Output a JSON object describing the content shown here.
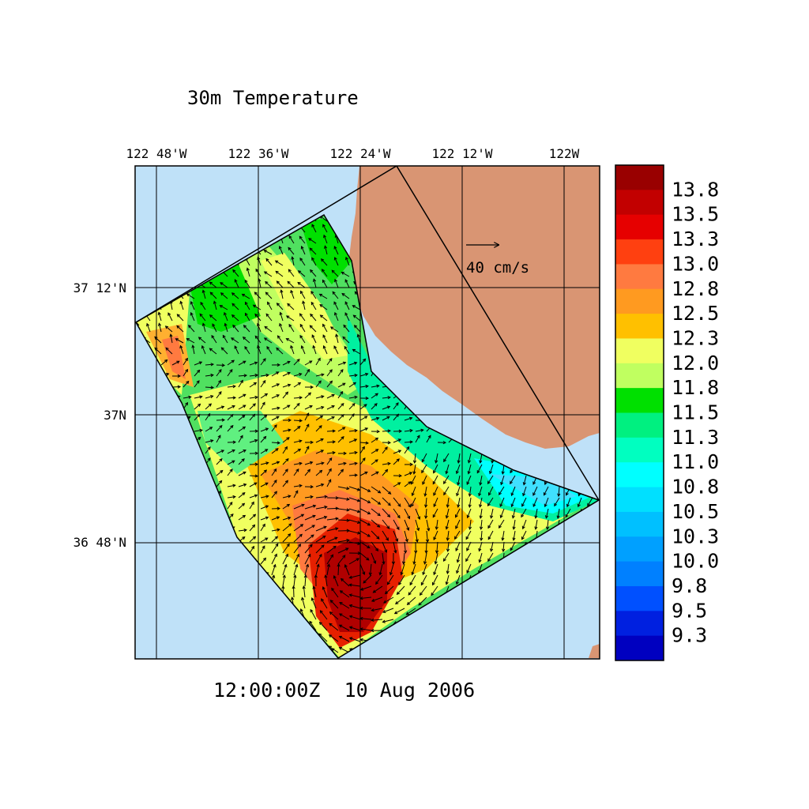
{
  "title": "30m Temperature",
  "timestamp": "12:00:00Z  10 Aug 2006",
  "lon_labels": [
    "122 48'W",
    "122 36'W",
    "122 24'W",
    "122 12'W",
    "122W"
  ],
  "lat_labels": [
    "37 12'N",
    "37N",
    "36 48'N"
  ],
  "vector_scale_label": "40 cm/s",
  "colorbar": {
    "labels": [
      "13.8",
      "13.5",
      "13.3",
      "13.0",
      "12.8",
      "12.5",
      "12.3",
      "12.0",
      "11.8",
      "11.5",
      "11.3",
      "11.0",
      "10.8",
      "10.5",
      "10.3",
      "10.0",
      "9.8",
      "9.5",
      "9.3"
    ],
    "colors": [
      "#990000",
      "#c20000",
      "#e60000",
      "#ff4010",
      "#ff7a40",
      "#ff9a20",
      "#ffc000",
      "#f0ff60",
      "#c0ff60",
      "#00e000",
      "#00f080",
      "#00ffc0",
      "#00ffff",
      "#00e0ff",
      "#00c0ff",
      "#00a0ff",
      "#0080ff",
      "#0050ff",
      "#0020e0",
      "#0000c0"
    ]
  },
  "colors": {
    "ocean": "#bfe1f8",
    "land": "#d99573",
    "grid": "#000000"
  }
}
